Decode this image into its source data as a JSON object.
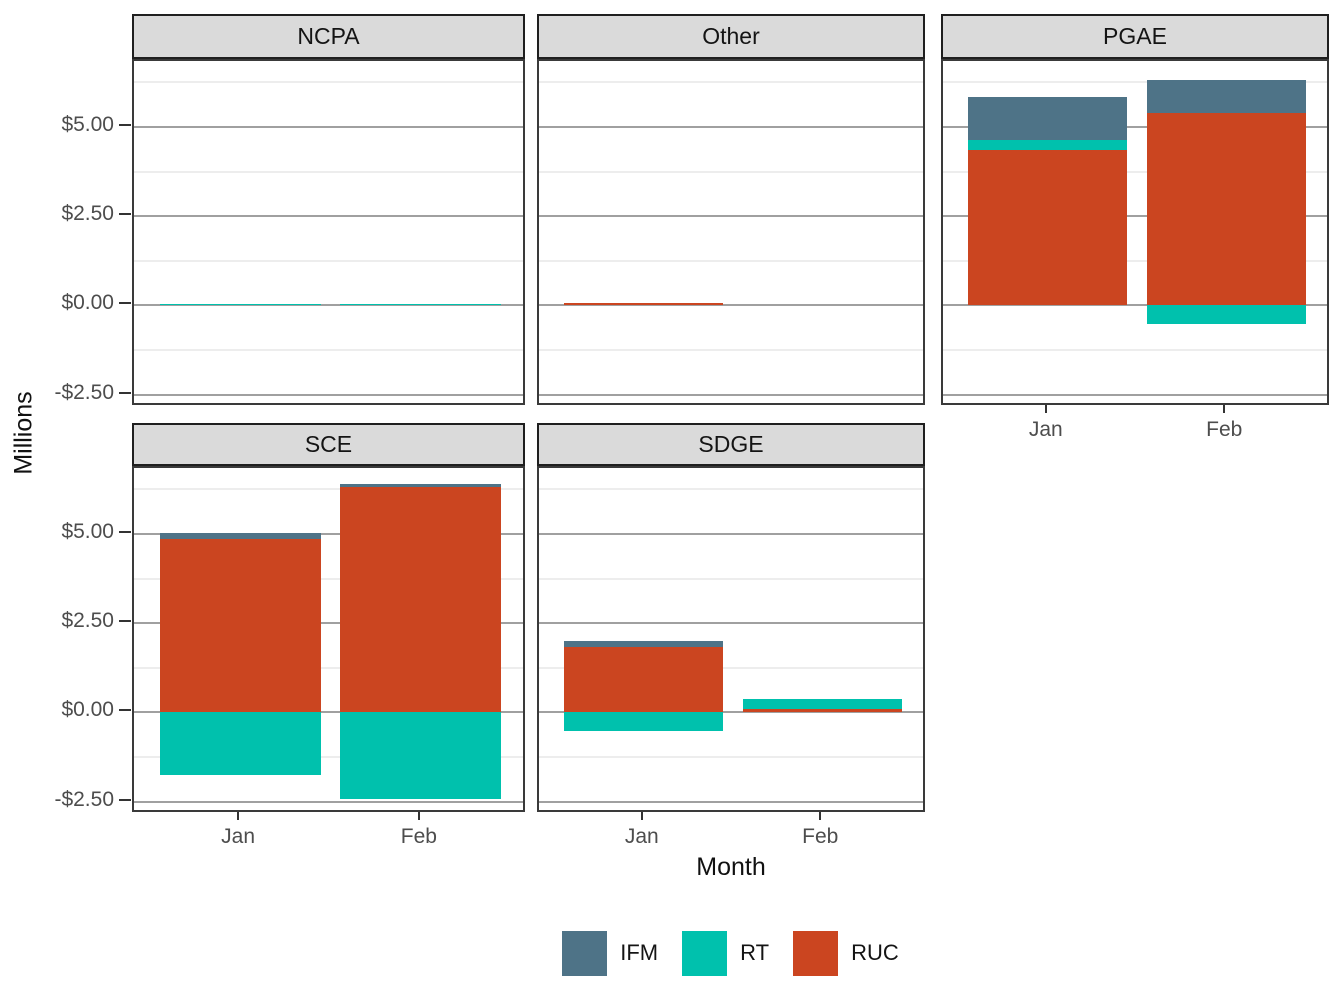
{
  "chart_data": {
    "type": "bar",
    "stacked": true,
    "title": "",
    "xlabel": "Month",
    "ylabel": "Millions",
    "units": "millions of dollars",
    "categories": [
      "Jan",
      "Feb"
    ],
    "series": [
      {
        "name": "IFM",
        "color": "#4e7387"
      },
      {
        "name": "RT",
        "color": "#00c1ad"
      },
      {
        "name": "RUC",
        "color": "#cb4520"
      }
    ],
    "stack_order": [
      "RUC",
      "RT",
      "IFM"
    ],
    "ylim": [
      -2.85,
      6.85
    ],
    "yticks": [
      {
        "value": 5,
        "label": "$5.00"
      },
      {
        "value": 2.5,
        "label": "$2.50"
      },
      {
        "value": 0,
        "label": "$0.00"
      },
      {
        "value": -2.5,
        "label": "-$2.50"
      }
    ],
    "yminor": [
      6.25,
      3.75,
      1.25,
      -1.25
    ],
    "grid": true,
    "legend_position": "bottom",
    "facets": [
      {
        "title": "NCPA",
        "values": [
          {
            "month": "Jan",
            "IFM": 0,
            "RT": 0.04,
            "RUC": 0
          },
          {
            "month": "Feb",
            "IFM": 0,
            "RT": 0.04,
            "RUC": 0
          }
        ]
      },
      {
        "title": "Other",
        "values": [
          {
            "month": "Jan",
            "IFM": 0,
            "RT": 0,
            "RUC": 0.06
          },
          {
            "month": "Feb",
            "IFM": 0,
            "RT": 0,
            "RUC": 0
          }
        ]
      },
      {
        "title": "PGAE",
        "values": [
          {
            "month": "Jan",
            "IFM": 1.2,
            "RT": 0.27,
            "RUC": 4.36
          },
          {
            "month": "Feb",
            "IFM": 0.92,
            "RT": -0.52,
            "RUC": 5.4
          }
        ]
      },
      {
        "title": "SCE",
        "values": [
          {
            "month": "Jan",
            "IFM": 0.19,
            "RT": -1.76,
            "RUC": 4.85
          },
          {
            "month": "Feb",
            "IFM": 0.08,
            "RT": -2.43,
            "RUC": 6.33
          }
        ]
      },
      {
        "title": "SDGE",
        "values": [
          {
            "month": "Jan",
            "IFM": 0.17,
            "RT": -0.53,
            "RUC": 1.83
          },
          {
            "month": "Feb",
            "IFM": 0,
            "RT": 0.28,
            "RUC": 0.1
          }
        ]
      }
    ]
  }
}
